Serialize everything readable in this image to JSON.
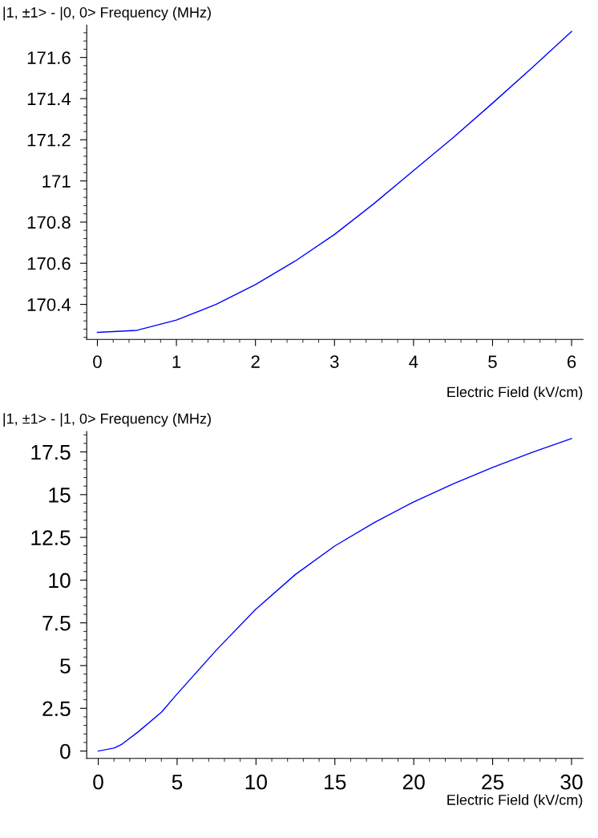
{
  "chart_data": [
    {
      "type": "line",
      "ylabel": "|1, ±1> - |0, 0> Frequency (MHz)",
      "xlabel": "Electric Field (kV/cm)",
      "x": [
        0,
        0.5,
        1,
        1.5,
        2,
        2.5,
        3,
        3.5,
        4,
        4.5,
        5,
        5.5,
        6
      ],
      "series": [
        {
          "color": "#0000ff",
          "values": [
            170.264,
            170.274,
            170.324,
            170.4,
            170.496,
            170.61,
            170.74,
            170.89,
            171.05,
            171.21,
            171.378,
            171.55,
            171.726
          ]
        }
      ],
      "xlim": [
        -0.135,
        6.145
      ],
      "ylim": [
        170.23,
        171.757
      ],
      "xticks": [
        0,
        1,
        2,
        3,
        4,
        5,
        6
      ],
      "yticks": [
        170.4,
        170.6,
        170.8,
        171,
        171.2,
        171.4,
        171.6
      ],
      "grid": false,
      "legend": false
    },
    {
      "type": "line",
      "ylabel": "|1, ±1> - |1, 0> Frequency (MHz)",
      "xlabel": "Electric Field (kV/cm)",
      "x": [
        0,
        1,
        1.5,
        2.5,
        4,
        5,
        7.5,
        10,
        12.5,
        15,
        17.5,
        20,
        22.5,
        25,
        27.5,
        30
      ],
      "series": [
        {
          "color": "#0000ff",
          "values": [
            0,
            0.17,
            0.4,
            1.1,
            2.27,
            3.34,
            5.92,
            8.31,
            10.33,
            12.0,
            13.37,
            14.58,
            15.63,
            16.59,
            17.47,
            18.28
          ]
        }
      ],
      "xlim": [
        -0.73,
        30.73
      ],
      "ylim": [
        -0.43,
        18.69
      ],
      "xticks": [
        0,
        5,
        10,
        15,
        20,
        25,
        30
      ],
      "yticks": [
        0,
        2.5,
        5,
        7.5,
        10,
        12.5,
        15,
        17.5
      ],
      "grid": false,
      "legend": false
    }
  ]
}
